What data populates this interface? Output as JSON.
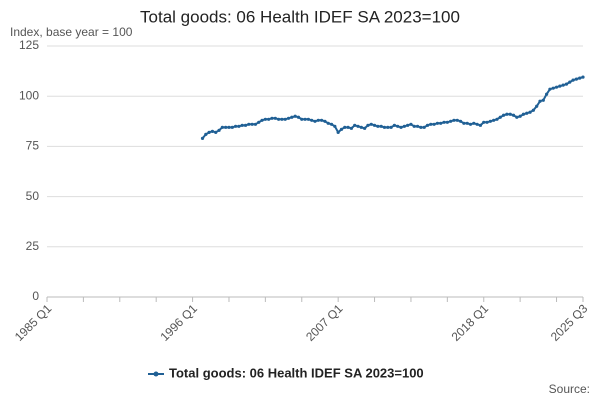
{
  "chart_data": {
    "type": "line",
    "title": "Total goods: 06 Health IDEF SA 2023=100",
    "y_label": "Index, base year = 100",
    "source": "Source:",
    "categories": [
      "1985 Q1",
      null,
      null,
      null,
      null,
      null,
      null,
      null,
      null,
      null,
      null,
      null,
      null,
      null,
      null,
      null,
      null,
      null,
      null,
      null,
      null,
      null,
      null,
      null,
      null,
      null,
      null,
      null,
      null,
      null,
      null,
      null,
      null,
      null,
      null,
      null,
      null,
      null,
      null,
      null,
      null,
      null,
      null,
      null,
      "1996 Q1",
      null,
      null,
      null,
      null,
      null,
      null,
      null,
      null,
      null,
      null,
      null,
      null,
      null,
      null,
      null,
      null,
      null,
      null,
      null,
      null,
      null,
      null,
      null,
      null,
      null,
      null,
      null,
      null,
      null,
      null,
      null,
      null,
      null,
      null,
      null,
      null,
      null,
      null,
      null,
      null,
      null,
      null,
      null,
      "2007 Q1",
      null,
      null,
      null,
      null,
      null,
      null,
      null,
      null,
      null,
      null,
      null,
      null,
      null,
      null,
      null,
      null,
      null,
      null,
      null,
      null,
      null,
      null,
      null,
      null,
      null,
      null,
      null,
      null,
      null,
      null,
      null,
      null,
      null,
      null,
      null,
      null,
      null,
      null,
      null,
      null,
      null,
      null,
      null,
      "2018 Q1",
      null,
      null,
      null,
      null,
      null,
      null,
      null,
      null,
      null,
      null,
      null,
      null,
      null,
      null,
      null,
      null,
      null,
      null,
      null,
      null,
      null,
      null,
      null,
      null,
      null,
      null,
      null,
      null,
      null,
      "2025 Q3"
    ],
    "series": [
      {
        "name": "Total goods: 06 Health IDEF SA 2023=100",
        "color": "#206095",
        "values": [
          null,
          null,
          null,
          null,
          null,
          null,
          null,
          null,
          null,
          null,
          null,
          null,
          null,
          null,
          null,
          null,
          null,
          null,
          null,
          null,
          null,
          null,
          null,
          null,
          null,
          null,
          null,
          null,
          null,
          null,
          null,
          null,
          null,
          null,
          null,
          null,
          null,
          null,
          null,
          null,
          null,
          null,
          null,
          null,
          null,
          null,
          null,
          79,
          81,
          82,
          82.5,
          82,
          83,
          84.5,
          84.5,
          84.5,
          84.5,
          85,
          85,
          85.5,
          85.5,
          86,
          86,
          86,
          87,
          88,
          88.5,
          88.5,
          89,
          89,
          88.5,
          88.5,
          88.5,
          89,
          89.5,
          90,
          89.5,
          88.5,
          88.5,
          88.5,
          88,
          87.5,
          88,
          88,
          87.5,
          86.5,
          86,
          85,
          82,
          83.5,
          84.5,
          84.5,
          84,
          85.5,
          85,
          84.5,
          84,
          85.5,
          86,
          85.5,
          85,
          85,
          84.5,
          84.5,
          84.5,
          85.5,
          85,
          84.5,
          85,
          85.5,
          86,
          85,
          85,
          84.5,
          84.5,
          85.5,
          86,
          86,
          86.5,
          86.5,
          87,
          87,
          87.5,
          88,
          88,
          87.5,
          86.5,
          86.5,
          86,
          86.5,
          86,
          85.5,
          87,
          87,
          87.5,
          88,
          88.5,
          89.5,
          90.5,
          91,
          91,
          90.5,
          89.5,
          90,
          91,
          91.5,
          92,
          93,
          95,
          97.5,
          98,
          101,
          103.5,
          104,
          104.5,
          105,
          105.5,
          106,
          107,
          108,
          108.5,
          109,
          109.5
        ]
      }
    ],
    "ylim": [
      0,
      125
    ],
    "yticks": [
      0,
      25,
      50,
      75,
      100,
      125
    ],
    "grid": true,
    "legend": "bottom"
  }
}
